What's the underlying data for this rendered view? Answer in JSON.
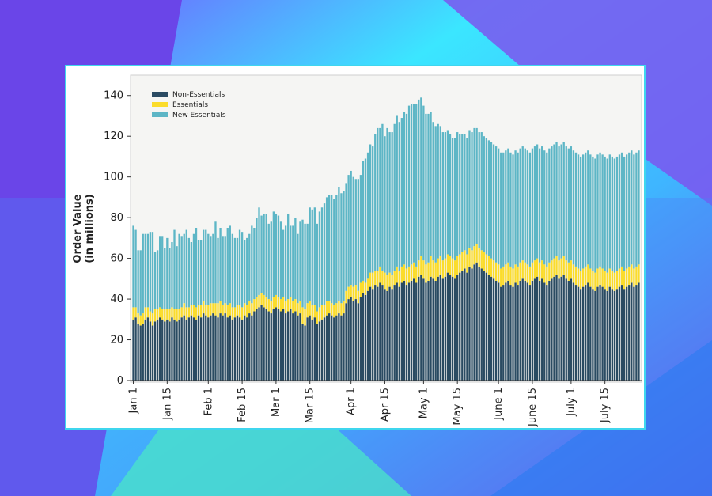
{
  "chart_data": {
    "type": "bar",
    "stacked": true,
    "xlabel": "",
    "ylabel": "Order Value\n(in millions)",
    "ylim": [
      0,
      150
    ],
    "yticks": [
      0,
      20,
      40,
      60,
      80,
      100,
      120,
      140
    ],
    "grid": false,
    "legend_position": "top-left",
    "colors": {
      "non_essentials": "#2a4b62",
      "essentials": "#fbdc2b",
      "new_essentials": "#5db6c6",
      "plot_bg": "#f5f5f3"
    },
    "x_tick_labels": [
      "Jan 1",
      "Jan 15",
      "Feb 1",
      "Feb 15",
      "Mar 1",
      "Mar 15",
      "Apr 1",
      "Apr 15",
      "May 1",
      "May 15",
      "June 1",
      "June 15",
      "July 1",
      "July 15"
    ],
    "x_tick_days": [
      0,
      14,
      31,
      45,
      59,
      73,
      90,
      104,
      120,
      134,
      151,
      165,
      181,
      195
    ],
    "day_count": 210,
    "series": [
      {
        "name": "Non-Essentials",
        "values": [
          30,
          31,
          28,
          27,
          28,
          30,
          31,
          29,
          27,
          29,
          30,
          31,
          30,
          29,
          30,
          29,
          31,
          30,
          29,
          30,
          31,
          32,
          30,
          31,
          32,
          31,
          30,
          32,
          31,
          33,
          32,
          31,
          32,
          33,
          32,
          31,
          33,
          32,
          33,
          31,
          32,
          30,
          31,
          32,
          31,
          30,
          32,
          31,
          33,
          32,
          34,
          35,
          36,
          37,
          36,
          35,
          34,
          33,
          35,
          36,
          35,
          34,
          35,
          33,
          34,
          35,
          33,
          34,
          32,
          33,
          28,
          27,
          31,
          32,
          30,
          31,
          28,
          29,
          30,
          31,
          32,
          33,
          32,
          31,
          32,
          33,
          32,
          33,
          38,
          40,
          41,
          39,
          40,
          38,
          41,
          43,
          42,
          44,
          46,
          45,
          47,
          46,
          48,
          47,
          45,
          44,
          46,
          45,
          47,
          48,
          46,
          48,
          49,
          47,
          48,
          49,
          50,
          48,
          51,
          52,
          50,
          48,
          49,
          51,
          50,
          49,
          51,
          52,
          50,
          51,
          53,
          52,
          51,
          50,
          52,
          53,
          54,
          55,
          53,
          56,
          55,
          57,
          58,
          56,
          55,
          54,
          53,
          52,
          51,
          50,
          49,
          48,
          46,
          47,
          48,
          49,
          47,
          46,
          48,
          47,
          49,
          50,
          49,
          48,
          47,
          49,
          50,
          51,
          49,
          50,
          48,
          47,
          49,
          50,
          51,
          52,
          50,
          51,
          52,
          50,
          49,
          50,
          48,
          47,
          46,
          45,
          46,
          47,
          48,
          46,
          45,
          44,
          46,
          47,
          46,
          45,
          44,
          46,
          45,
          44,
          45,
          46,
          47,
          45,
          46,
          47,
          48,
          46,
          47,
          48
        ]
      },
      {
        "name": "Essentials",
        "values": [
          6,
          5,
          5,
          5,
          5,
          6,
          5,
          5,
          6,
          6,
          5,
          5,
          5,
          6,
          5,
          6,
          5,
          5,
          6,
          5,
          5,
          6,
          6,
          5,
          5,
          6,
          6,
          5,
          6,
          6,
          5,
          6,
          6,
          5,
          6,
          7,
          6,
          5,
          5,
          6,
          6,
          6,
          5,
          5,
          6,
          6,
          6,
          6,
          6,
          6,
          6,
          6,
          6,
          6,
          6,
          6,
          6,
          6,
          6,
          6,
          6,
          6,
          6,
          6,
          6,
          6,
          6,
          6,
          6,
          6,
          8,
          8,
          7,
          7,
          7,
          6,
          6,
          7,
          7,
          6,
          7,
          6,
          6,
          6,
          6,
          6,
          6,
          6,
          6,
          6,
          6,
          7,
          7,
          6,
          7,
          6,
          6,
          6,
          7,
          8,
          7,
          8,
          8,
          7,
          8,
          8,
          7,
          7,
          7,
          8,
          8,
          8,
          8,
          8,
          8,
          8,
          8,
          8,
          8,
          9,
          9,
          9,
          9,
          10,
          9,
          9,
          9,
          9,
          9,
          9,
          9,
          9,
          9,
          9,
          9,
          9,
          9,
          9,
          9,
          9,
          9,
          9,
          9,
          9,
          9,
          9,
          9,
          9,
          9,
          9,
          9,
          9,
          9,
          9,
          9,
          9,
          9,
          9,
          9,
          9,
          9,
          9,
          9,
          9,
          9,
          9,
          9,
          9,
          9,
          9,
          9,
          9,
          9,
          9,
          9,
          9,
          9,
          9,
          9,
          9,
          9,
          9,
          9,
          9,
          9,
          9,
          9,
          9,
          9,
          9,
          9,
          9,
          9,
          9,
          9,
          9,
          9,
          9,
          9,
          9,
          9,
          9,
          9,
          9,
          9,
          9,
          9,
          9,
          9,
          9
        ]
      },
      {
        "name": "New Essentials",
        "values": [
          40,
          38,
          31,
          32,
          39,
          36,
          36,
          39,
          40,
          28,
          29,
          35,
          36,
          30,
          35,
          30,
          32,
          39,
          31,
          37,
          35,
          34,
          38,
          34,
          31,
          35,
          39,
          32,
          32,
          35,
          37,
          35,
          33,
          34,
          40,
          32,
          36,
          34,
          33,
          38,
          38,
          36,
          34,
          33,
          37,
          37,
          31,
          33,
          33,
          38,
          35,
          39,
          43,
          38,
          40,
          41,
          37,
          39,
          42,
          40,
          40,
          38,
          33,
          37,
          42,
          35,
          37,
          40,
          34,
          39,
          43,
          42,
          39,
          46,
          47,
          48,
          43,
          47,
          48,
          50,
          51,
          52,
          53,
          52,
          53,
          56,
          54,
          54,
          53,
          55,
          56,
          54,
          52,
          55,
          53,
          59,
          61,
          62,
          63,
          62,
          67,
          70,
          68,
          72,
          67,
          72,
          69,
          70,
          72,
          74,
          73,
          73,
          75,
          76,
          79,
          79,
          78,
          80,
          79,
          78,
          76,
          74,
          73,
          71,
          68,
          67,
          66,
          64,
          63,
          62,
          61,
          60,
          59,
          60,
          61,
          59,
          58,
          57,
          57,
          58,
          58,
          58,
          57,
          57,
          58,
          57,
          57,
          57,
          57,
          57,
          57,
          57,
          57,
          56,
          56,
          56,
          56,
          56,
          56,
          56,
          56,
          56,
          56,
          56,
          56,
          56,
          56,
          56,
          56,
          56,
          56,
          56,
          56,
          56,
          56,
          56,
          56,
          56,
          56,
          56,
          56,
          56,
          56,
          56,
          56,
          56,
          56,
          56,
          56,
          56,
          56,
          56,
          56,
          56,
          56,
          56,
          56,
          56,
          56,
          56,
          56,
          56,
          56,
          56,
          56,
          56,
          56,
          56,
          56,
          56
        ]
      }
    ],
    "y_tick_labels": [
      "0",
      "20",
      "40",
      "60",
      "80",
      "100",
      "120",
      "140"
    ]
  }
}
